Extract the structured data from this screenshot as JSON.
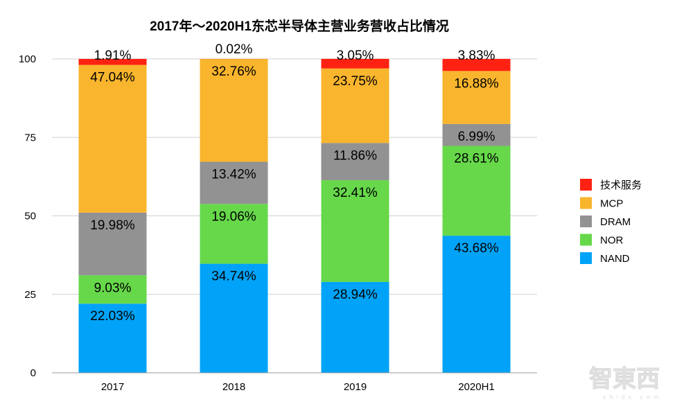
{
  "chart_data": {
    "type": "bar",
    "stacked": true,
    "title": "2017年～2020H1东芯半导体主营业务营收占比情况",
    "xlabel": "",
    "ylabel": "",
    "ylim": [
      0,
      100
    ],
    "yticks": [
      0,
      25,
      50,
      75,
      100
    ],
    "grid": true,
    "legend_position": "right",
    "categories": [
      "2017",
      "2018",
      "2019",
      "2020H1"
    ],
    "series": [
      {
        "name": "NAND",
        "color": "#00A3F7",
        "values": [
          22.03,
          34.74,
          28.94,
          43.68
        ],
        "labels": [
          "22.03%",
          "34.74%",
          "28.94%",
          "43.68%"
        ]
      },
      {
        "name": "NOR",
        "color": "#66D84A",
        "values": [
          9.03,
          19.06,
          32.41,
          28.61
        ],
        "labels": [
          "9.03%",
          "19.06%",
          "32.41%",
          "28.61%"
        ]
      },
      {
        "name": "DRAM",
        "color": "#929292",
        "values": [
          19.98,
          13.42,
          11.86,
          6.99
        ],
        "labels": [
          "19.98%",
          "13.42%",
          "11.86%",
          "6.99%"
        ]
      },
      {
        "name": "MCP",
        "color": "#F9B52D",
        "values": [
          47.04,
          32.76,
          23.75,
          16.88
        ],
        "labels": [
          "47.04%",
          "32.76%",
          "23.75%",
          "16.88%"
        ]
      },
      {
        "name": "技术服务",
        "color": "#FF2212",
        "values": [
          1.91,
          0.02,
          3.05,
          3.83
        ],
        "labels": [
          "1.91%",
          "0.02%",
          "3.05%",
          "3.83%"
        ]
      }
    ]
  },
  "watermark": {
    "logo": "智东西",
    "sub": "zhidx.com"
  }
}
